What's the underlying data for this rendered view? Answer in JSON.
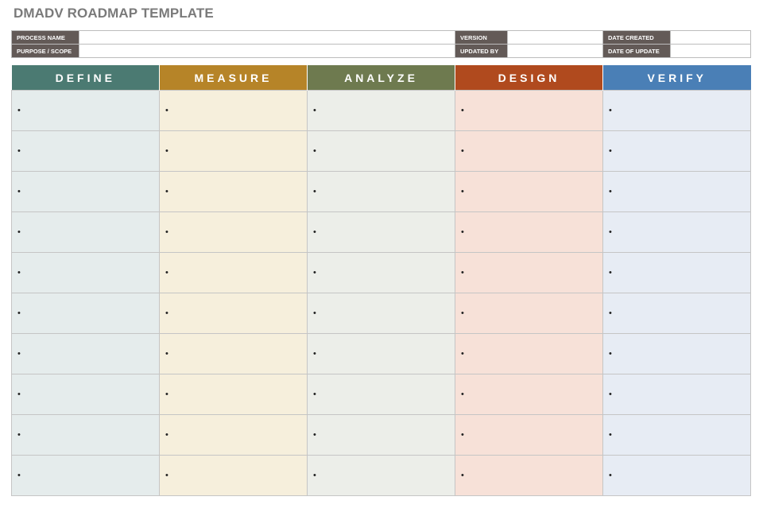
{
  "title": "DMADV ROADMAP TEMPLATE",
  "info": {
    "row1": [
      "PROCESS NAME",
      "VERSION",
      "DATE CREATED"
    ],
    "row2": [
      "PURPOSE / SCOPE",
      "UPDATED BY",
      "DATE OF UPDATE"
    ]
  },
  "phases": [
    {
      "label": "DEFINE",
      "color": "#4b7a72"
    },
    {
      "label": "MEASURE",
      "color": "#b68428"
    },
    {
      "label": "ANALYZE",
      "color": "#6e7a4f"
    },
    {
      "label": "DESIGN",
      "color": "#b04a1e"
    },
    {
      "label": "VERIFY",
      "color": "#4a7fb6"
    }
  ],
  "bullet": "•"
}
